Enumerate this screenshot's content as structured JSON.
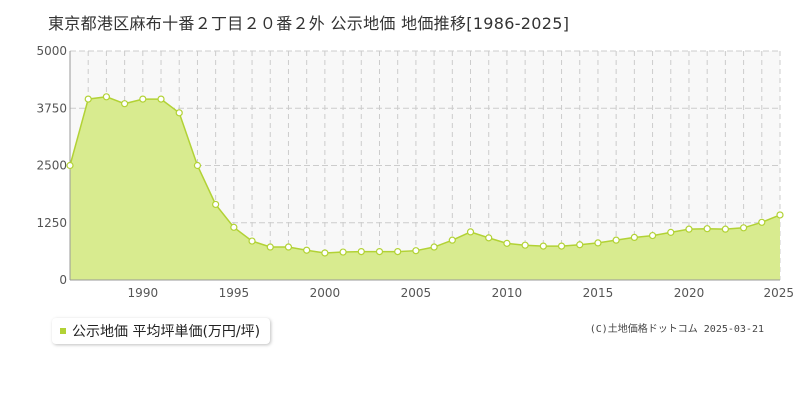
{
  "chart_data": {
    "type": "area",
    "title": "東京都港区麻布十番２丁目２０番２外 公示地価 地価推移[1986-2025]",
    "x": [
      1986,
      1987,
      1988,
      1989,
      1990,
      1991,
      1992,
      1993,
      1994,
      1995,
      1996,
      1997,
      1998,
      1999,
      2000,
      2001,
      2002,
      2003,
      2004,
      2005,
      2006,
      2007,
      2008,
      2009,
      2010,
      2011,
      2012,
      2013,
      2014,
      2015,
      2016,
      2017,
      2018,
      2019,
      2020,
      2021,
      2022,
      2023,
      2024,
      2025
    ],
    "series": [
      {
        "name": "公示地価 平均坪単価(万円/坪)",
        "values": [
          2500,
          3950,
          4000,
          3850,
          3950,
          3950,
          3650,
          2500,
          1650,
          1150,
          850,
          720,
          720,
          650,
          590,
          610,
          620,
          620,
          620,
          640,
          720,
          870,
          1050,
          920,
          800,
          760,
          740,
          740,
          770,
          810,
          870,
          930,
          970,
          1040,
          1110,
          1120,
          1110,
          1140,
          1260,
          1420
        ]
      }
    ],
    "y_ticks": [
      "0",
      "1250",
      "2500",
      "3750",
      "5000"
    ],
    "x_ticks": [
      "1990",
      "1995",
      "2000",
      "2005",
      "2010",
      "2015",
      "2020",
      "2025"
    ],
    "ylim": [
      0,
      5000
    ],
    "xlim": [
      1986,
      2025
    ],
    "grid": true,
    "legend_position": "bottom-left",
    "colors": {
      "fill": "#d8eb8f",
      "line": "#b2d235",
      "marker_fill": "#ffffff",
      "grid": "#cccccc",
      "plot_bg": "#f8f8f8"
    }
  },
  "credit": "(C)土地価格ドットコム 2025-03-21"
}
